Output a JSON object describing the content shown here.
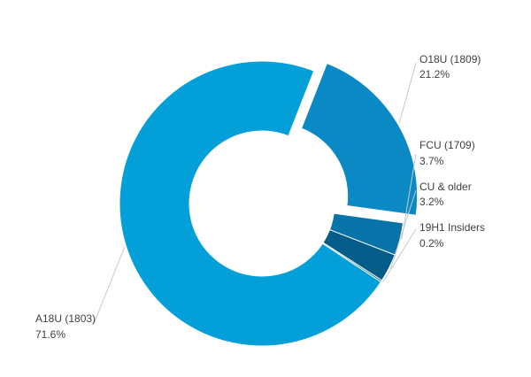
{
  "chart_data": {
    "type": "pie",
    "variant": "donut",
    "title": "",
    "slices": [
      {
        "name": "O18U (1809)",
        "percent_label": "21.2%",
        "value": 21.2,
        "color": "#0a89c4",
        "exploded": true
      },
      {
        "name": "FCU (1709)",
        "percent_label": "3.7%",
        "value": 3.7,
        "color": "#0873a8",
        "exploded": false
      },
      {
        "name": "CU & older",
        "percent_label": "3.2%",
        "value": 3.2,
        "color": "#045c88",
        "exploded": false
      },
      {
        "name": "19H1 Insiders",
        "percent_label": "0.2%",
        "value": 0.2,
        "color": "#0d5f8c",
        "exploded": false
      },
      {
        "name": "A18U (1803)",
        "percent_label": "71.6%",
        "value": 71.6,
        "color": "#029fd9",
        "exploded": false
      }
    ],
    "legend": "none",
    "label_style": "outside-with-leader-lines"
  }
}
